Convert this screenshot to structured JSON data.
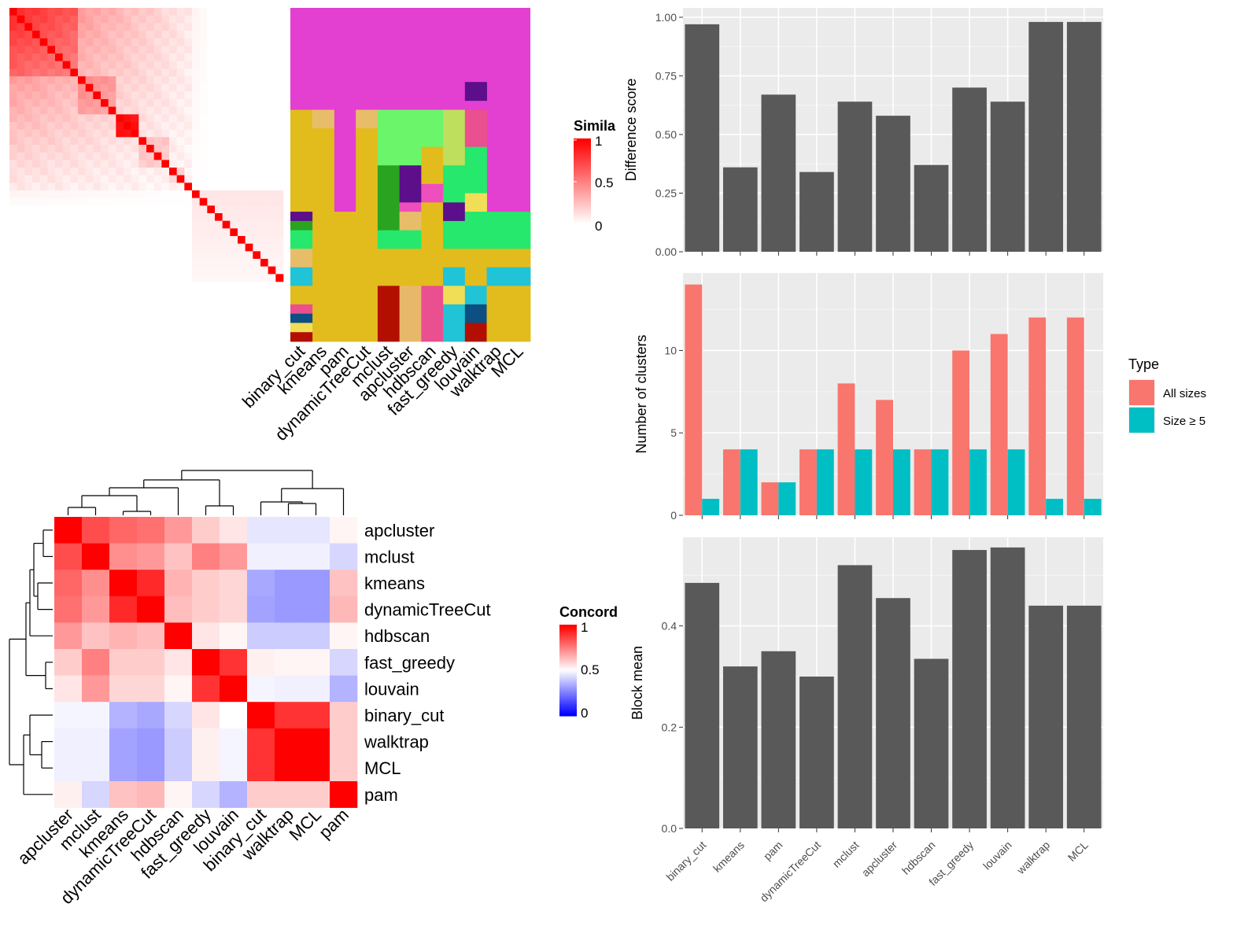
{
  "chart_data": [
    {
      "type": "heatmap",
      "legend_title": "Simila",
      "legend_ticks": [
        "1",
        "0.5",
        "0"
      ],
      "colors": {
        "high": "#ff0000",
        "low": "#ffffff"
      },
      "n": 36,
      "x_labels": [
        "binary_cut",
        "kmeans",
        "pam",
        "dynamicTreeCut",
        "mclust",
        "apcluster",
        "hdbscan",
        "fast_greedy",
        "louvain",
        "walktrap",
        "MCL"
      ]
    },
    {
      "type": "heatmap",
      "legend_title": "Concord",
      "legend_ticks": [
        "1",
        "0.5",
        "0"
      ],
      "colors": {
        "high": "#ff0000",
        "mid": "#ffffff",
        "low": "#0000ff"
      },
      "row_labels": [
        "apcluster",
        "mclust",
        "kmeans",
        "dynamicTreeCut",
        "hdbscan",
        "fast_greedy",
        "louvain",
        "binary_cut",
        "walktrap",
        "MCL",
        "pam"
      ],
      "col_labels": [
        "apcluster",
        "mclust",
        "kmeans",
        "dynamicTreeCut",
        "hdbscan",
        "fast_greedy",
        "louvain",
        "binary_cut",
        "walktrap",
        "MCL",
        "pam"
      ],
      "values": [
        [
          1.0,
          0.85,
          0.8,
          0.78,
          0.7,
          0.6,
          0.55,
          0.45,
          0.45,
          0.45,
          0.52
        ],
        [
          0.85,
          1.0,
          0.72,
          0.7,
          0.62,
          0.75,
          0.7,
          0.47,
          0.47,
          0.47,
          0.42
        ],
        [
          0.8,
          0.72,
          1.0,
          0.92,
          0.65,
          0.6,
          0.58,
          0.33,
          0.3,
          0.3,
          0.62
        ],
        [
          0.78,
          0.7,
          0.92,
          1.0,
          0.63,
          0.6,
          0.58,
          0.32,
          0.3,
          0.3,
          0.64
        ],
        [
          0.7,
          0.62,
          0.65,
          0.63,
          1.0,
          0.55,
          0.52,
          0.4,
          0.4,
          0.4,
          0.52
        ],
        [
          0.6,
          0.75,
          0.6,
          0.6,
          0.55,
          1.0,
          0.9,
          0.53,
          0.52,
          0.52,
          0.42
        ],
        [
          0.55,
          0.7,
          0.58,
          0.58,
          0.52,
          0.9,
          1.0,
          0.48,
          0.47,
          0.47,
          0.35
        ],
        [
          0.48,
          0.48,
          0.35,
          0.33,
          0.42,
          0.55,
          0.5,
          1.0,
          0.9,
          0.9,
          0.6
        ],
        [
          0.47,
          0.47,
          0.32,
          0.3,
          0.4,
          0.53,
          0.48,
          0.9,
          1.0,
          1.0,
          0.6
        ],
        [
          0.47,
          0.47,
          0.32,
          0.3,
          0.4,
          0.53,
          0.48,
          0.9,
          1.0,
          1.0,
          0.6
        ],
        [
          0.53,
          0.42,
          0.62,
          0.64,
          0.52,
          0.42,
          0.35,
          0.6,
          0.6,
          0.6,
          1.0
        ]
      ]
    },
    {
      "type": "bar",
      "ylabel": "Difference score",
      "ylim": [
        0,
        1.04
      ],
      "yticks": [
        "0.00",
        "0.25",
        "0.50",
        "0.75",
        "1.00"
      ],
      "categories": [
        "binary_cut",
        "kmeans",
        "pam",
        "dynamicTreeCut",
        "mclust",
        "apcluster",
        "hdbscan",
        "fast_greedy",
        "louvain",
        "walktrap",
        "MCL"
      ],
      "values": [
        0.97,
        0.36,
        0.67,
        0.34,
        0.64,
        0.58,
        0.37,
        0.7,
        0.64,
        0.98,
        0.98
      ],
      "color": "#595959"
    },
    {
      "type": "bar",
      "ylabel": "Number of clusters",
      "ylim": [
        0,
        14.7
      ],
      "yticks": [
        "0",
        "5",
        "10"
      ],
      "categories": [
        "binary_cut",
        "kmeans",
        "pam",
        "dynamicTreeCut",
        "mclust",
        "apcluster",
        "hdbscan",
        "fast_greedy",
        "louvain",
        "walktrap",
        "MCL"
      ],
      "legend_title": "Type",
      "series": [
        {
          "name": "All sizes",
          "color": "#f8766d",
          "values": [
            14,
            4,
            2,
            4,
            8,
            7,
            4,
            10,
            11,
            12,
            12
          ]
        },
        {
          "name": "Size ≥ 5",
          "color": "#00bfc4",
          "values": [
            1,
            4,
            2,
            4,
            4,
            4,
            4,
            4,
            4,
            1,
            1
          ]
        }
      ]
    },
    {
      "type": "bar",
      "ylabel": "Block mean",
      "ylim": [
        0,
        0.575
      ],
      "yticks": [
        "0.0",
        "0.2",
        "0.4"
      ],
      "categories": [
        "binary_cut",
        "kmeans",
        "pam",
        "dynamicTreeCut",
        "mclust",
        "apcluster",
        "hdbscan",
        "fast_greedy",
        "louvain",
        "walktrap",
        "MCL"
      ],
      "values": [
        0.485,
        0.32,
        0.35,
        0.3,
        0.52,
        0.455,
        0.335,
        0.55,
        0.555,
        0.44,
        0.44
      ],
      "color": "#595959"
    }
  ]
}
